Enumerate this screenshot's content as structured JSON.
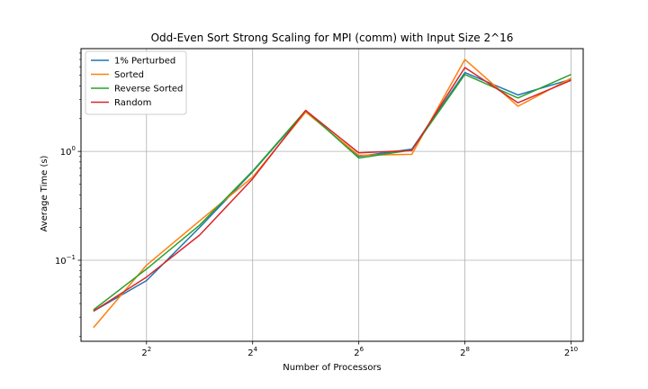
{
  "chart_data": {
    "type": "line",
    "title": "Odd-Even Sort Strong Scaling for MPI (comm) with Input Size 2^16",
    "xlabel": "Number of Processors",
    "ylabel": "Average Time (s)",
    "x_scale": "log2",
    "y_scale": "log10",
    "x": [
      2,
      4,
      8,
      16,
      32,
      64,
      128,
      256,
      512,
      1024
    ],
    "xlim": [
      1.7,
      1200
    ],
    "ylim": [
      0.018,
      8.8
    ],
    "x_ticks": [
      {
        "value": 4,
        "base": "2",
        "exp": "2"
      },
      {
        "value": 16,
        "base": "2",
        "exp": "4"
      },
      {
        "value": 64,
        "base": "2",
        "exp": "6"
      },
      {
        "value": 256,
        "base": "2",
        "exp": "8"
      },
      {
        "value": 1024,
        "base": "2",
        "exp": "10"
      }
    ],
    "y_ticks": [
      {
        "value": 0.1,
        "base": "10",
        "exp": "−1"
      },
      {
        "value": 1,
        "base": "10",
        "exp": "0"
      }
    ],
    "grid": true,
    "legend_position": "top-left",
    "series": [
      {
        "name": "1% Perturbed",
        "color": "#1f77b4",
        "values": [
          0.034,
          0.065,
          0.2,
          0.65,
          2.35,
          0.9,
          1.05,
          5.3,
          3.3,
          4.6
        ]
      },
      {
        "name": "Sorted",
        "color": "#ff7f0e",
        "values": [
          0.024,
          0.09,
          0.23,
          0.58,
          2.3,
          0.92,
          0.94,
          7.0,
          2.6,
          4.7
        ]
      },
      {
        "name": "Reverse Sorted",
        "color": "#2ca02c",
        "values": [
          0.035,
          0.083,
          0.21,
          0.66,
          2.38,
          0.87,
          1.03,
          5.1,
          3.1,
          5.1
        ]
      },
      {
        "name": "Random",
        "color": "#d62728",
        "values": [
          0.034,
          0.07,
          0.17,
          0.56,
          2.38,
          0.97,
          1.02,
          5.9,
          2.8,
          4.5
        ]
      }
    ]
  }
}
